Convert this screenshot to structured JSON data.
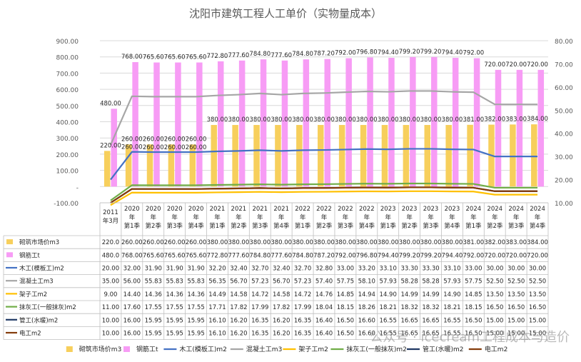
{
  "chart_data": {
    "type": "bar",
    "title": "沈阳市建筑工程人工单价（实物量成本）",
    "categories": [
      [
        "2011",
        "年3月"
      ],
      [
        "2020",
        "年",
        "第1季"
      ],
      [
        "2020",
        "年",
        "第2季"
      ],
      [
        "2020",
        "年",
        "第3季"
      ],
      [
        "2020",
        "年",
        "第4季"
      ],
      [
        "2021",
        "年",
        "第1季"
      ],
      [
        "2021",
        "年",
        "第2季"
      ],
      [
        "2021",
        "年",
        "第3季"
      ],
      [
        "2021",
        "年",
        "第4季"
      ],
      [
        "2022",
        "年",
        "第1季"
      ],
      [
        "2022",
        "年",
        "第2季"
      ],
      [
        "2022",
        "年",
        "第3季"
      ],
      [
        "2022",
        "年",
        "第4季"
      ],
      [
        "2023",
        "年",
        "第1季"
      ],
      [
        "2023",
        "年",
        "第2季"
      ],
      [
        "2023",
        "年",
        "第3季"
      ],
      [
        "2023",
        "年",
        "第4季"
      ],
      [
        "2024",
        "年",
        "第1季"
      ],
      [
        "2024",
        "年",
        "第2季"
      ],
      [
        "2024",
        "年",
        "第3季"
      ],
      [
        "2024",
        "年",
        "第4季"
      ]
    ],
    "left_axis": {
      "min": -100,
      "max": 900,
      "step": 100,
      "ticks": [
        "-100.00",
        "-",
        "100.00",
        "200.00",
        "300.00",
        "400.00",
        "500.00",
        "600.00",
        "700.00",
        "800.00",
        "900.00"
      ]
    },
    "right_axis": {
      "min": 10,
      "max": 80,
      "step": 10,
      "ticks": [
        "10.00",
        "20.00",
        "30.00",
        "40.00",
        "50.00",
        "60.00",
        "70.00",
        "80.00"
      ]
    },
    "grid": "horizontal",
    "legend_position": "bottom",
    "watermark": "公众号 · icecream工程成本与造价",
    "series": [
      {
        "name": "砌筑市场价m3",
        "type": "bar",
        "axis": "left",
        "color": "#F7CF5C",
        "values": [
          220,
          260,
          260,
          260,
          260,
          380,
          380,
          380,
          380,
          380,
          380,
          380,
          380,
          380,
          380,
          380,
          380,
          381,
          382,
          383,
          384
        ],
        "cells": [
          "220.0",
          "260.00",
          "260.00",
          "260.00",
          "260.00",
          "380.00",
          "380.00",
          "380.00",
          "380.00",
          "380.00",
          "380.00",
          "380.00",
          "380.00",
          "380.00",
          "380.00",
          "380.00",
          "380.00",
          "381.00",
          "382.00",
          "383.00",
          "384.00"
        ],
        "labels": [
          "220.00",
          "260.00",
          "260.00",
          "260.00",
          "260.00",
          "380.00",
          "380.00",
          "380.00",
          "380.00",
          "380.00",
          "380.00",
          "380.00",
          "380.00",
          "380.00",
          "380.00",
          "380.00",
          "380.00",
          "381.00",
          "382.00",
          "383.00",
          "384.00"
        ]
      },
      {
        "name": "钢筋工t",
        "type": "bar",
        "axis": "left",
        "color": "#F79CF5",
        "values": [
          480,
          768,
          765.6,
          765.6,
          765.6,
          772.8,
          777.6,
          784.8,
          777.6,
          784.8,
          787.2,
          792,
          796.8,
          794.4,
          799.2,
          799.2,
          794.4,
          792,
          720,
          720,
          720
        ],
        "cells": [
          "480.0",
          "768.00",
          "765.60",
          "765.60",
          "765.60",
          "772.80",
          "777.60",
          "784.80",
          "777.60",
          "784.80",
          "787.20",
          "792.00",
          "796.80",
          "794.40",
          "799.20",
          "799.20",
          "794.40",
          "792.00",
          "720.00",
          "720.00",
          "720.00"
        ],
        "labels": [
          "480.00",
          "768.00",
          "765.60",
          "765.60",
          "765.60",
          "772.80",
          "777.60",
          "784.80",
          "777.60",
          "784.80",
          "787.20",
          "792.00",
          "796.80",
          "794.40",
          "799.20",
          "799.20",
          "794.40",
          "792.00",
          "720.00",
          "720.00",
          "720.00"
        ]
      },
      {
        "name": "木工(模板工)m2",
        "type": "line",
        "axis": "right",
        "color": "#4472C4",
        "values": [
          20,
          32,
          31.9,
          31.9,
          31.9,
          32.2,
          32.4,
          32.7,
          32.4,
          32.7,
          32.8,
          33,
          33.2,
          33.1,
          33.3,
          33.3,
          33.1,
          33,
          30,
          30,
          30
        ],
        "cells": [
          "20.00",
          "32.00",
          "31.90",
          "31.90",
          "31.90",
          "32.20",
          "32.40",
          "32.70",
          "32.40",
          "32.70",
          "32.80",
          "33.00",
          "33.20",
          "33.10",
          "33.30",
          "33.30",
          "33.10",
          "33.00",
          "30.00",
          "30.00",
          "30.00"
        ],
        "point_labels": [
          "",
          "260.00",
          "260.00",
          "260.00",
          "260.00",
          "",
          "",
          "",
          "",
          "",
          "",
          "",
          "",
          "",
          "",
          "",
          "",
          "",
          "",
          "",
          ""
        ]
      },
      {
        "name": "混凝土工m3",
        "type": "line",
        "axis": "right",
        "color": "#A6A6A6",
        "values": [
          35,
          56,
          55.83,
          55.83,
          55.83,
          56.35,
          56.7,
          57.23,
          56.7,
          57.23,
          57.4,
          57.75,
          58.1,
          57.93,
          58.28,
          58.28,
          57.93,
          57.75,
          52.5,
          52.5,
          52.5
        ],
        "cells": [
          "35.00",
          "56.00",
          "55.83",
          "55.83",
          "55.83",
          "56.35",
          "56.70",
          "57.23",
          "56.70",
          "57.23",
          "57.40",
          "57.75",
          "58.10",
          "57.93",
          "58.28",
          "58.28",
          "57.93",
          "57.75",
          "52.50",
          "52.50",
          "52.50"
        ]
      },
      {
        "name": "架子工m2",
        "type": "line",
        "axis": "right",
        "color": "#FFC000",
        "values": [
          9,
          14.4,
          14.36,
          14.36,
          14.36,
          14.49,
          14.58,
          14.72,
          14.58,
          14.72,
          14.76,
          14.85,
          14.94,
          14.9,
          14.99,
          14.99,
          14.9,
          14.85,
          13.5,
          13.5,
          13.5
        ],
        "cells": [
          "9.00",
          "14.40",
          "14.36",
          "14.36",
          "14.36",
          "14.49",
          "14.58",
          "14.72",
          "14.58",
          "14.72",
          "14.76",
          "14.85",
          "14.94",
          "14.90",
          "14.99",
          "14.99",
          "14.90",
          "14.85",
          "13.50",
          "13.50",
          "13.50"
        ]
      },
      {
        "name": "抹灰工(一般抹灰)m2",
        "type": "line",
        "axis": "right",
        "color": "#70AD47",
        "values": [
          11,
          17.6,
          17.55,
          17.55,
          17.55,
          17.71,
          17.82,
          17.99,
          17.82,
          17.99,
          18.04,
          18.15,
          18.26,
          18.21,
          18.32,
          18.32,
          18.21,
          18.15,
          16.5,
          16.5,
          16.5
        ],
        "cells": [
          "11.00",
          "17.60",
          "17.55",
          "17.55",
          "17.55",
          "17.71",
          "17.82",
          "17.99",
          "17.82",
          "17.99",
          "18.04",
          "18.15",
          "18.26",
          "18.21",
          "18.32",
          "18.32",
          "18.21",
          "18.15",
          "16.50",
          "16.50",
          "16.50"
        ]
      },
      {
        "name": "管工(水暖)m2",
        "type": "line",
        "axis": "right",
        "color": "#203864",
        "values": [
          10,
          16,
          15.95,
          15.95,
          15.95,
          16.1,
          16.2,
          16.35,
          16.2,
          16.35,
          16.4,
          16.5,
          16.6,
          16.55,
          16.65,
          16.65,
          16.55,
          16.5,
          15,
          15,
          15
        ],
        "cells": [
          "10.00",
          "16.00",
          "15.95",
          "15.95",
          "15.95",
          "16.10",
          "16.20",
          "16.35",
          "16.20",
          "16.35",
          "16.40",
          "16.50",
          "16.60",
          "16.55",
          "16.65",
          "16.65",
          "16.55",
          "16.50",
          "15.00",
          "15.00",
          "15.00"
        ]
      },
      {
        "name": "电工m2",
        "type": "line",
        "axis": "right",
        "color": "#843C0C",
        "values": [
          10,
          16,
          15.95,
          15.95,
          15.95,
          16.1,
          16.2,
          16.35,
          16.2,
          16.35,
          16.4,
          16.5,
          16.6,
          16.55,
          16.65,
          16.65,
          16.55,
          16.5,
          15,
          15,
          15
        ],
        "cells": [
          "10.00",
          "16.00",
          "15.95",
          "15.95",
          "15.95",
          "16.10",
          "16.20",
          "16.35",
          "16.20",
          "16.35",
          "16.40",
          "16.50",
          "16.60",
          "16.55",
          "16.65",
          "16.65",
          "16.55",
          "16.50",
          "15.00",
          "15.00",
          "15.00"
        ]
      }
    ]
  }
}
